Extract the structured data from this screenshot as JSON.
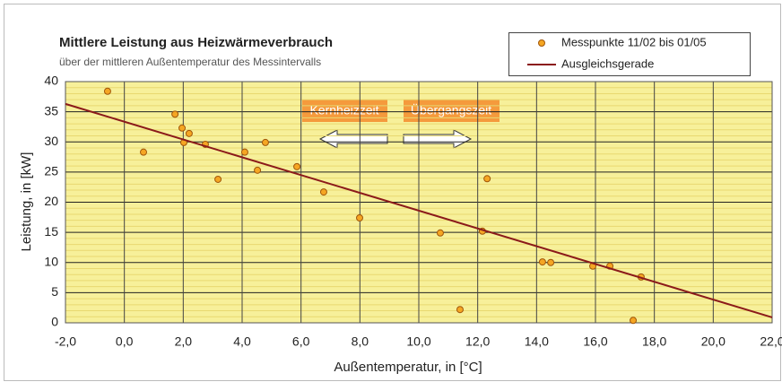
{
  "chart_data": {
    "type": "scatter",
    "title": "Mittlere Leistung aus Heizwärmeverbrauch",
    "subtitle": "über der mittleren Außentemperatur des Messintervalls",
    "x_label": "Außentemperatur, in [°C]",
    "y_label": "Leistung, in [kW]",
    "xlim": [
      -2,
      22
    ],
    "ylim": [
      0,
      40
    ],
    "xticks": [
      {
        "value": -2,
        "label": "-2,0"
      },
      {
        "value": 0,
        "label": "0,0"
      },
      {
        "value": 2,
        "label": "2,0"
      },
      {
        "value": 4,
        "label": "4,0"
      },
      {
        "value": 6,
        "label": "6,0"
      },
      {
        "value": 8,
        "label": "8,0"
      },
      {
        "value": 10,
        "label": "10,0"
      },
      {
        "value": 12,
        "label": "12,0"
      },
      {
        "value": 14,
        "label": "14,0"
      },
      {
        "value": 16,
        "label": "16,0"
      },
      {
        "value": 18,
        "label": "18,0"
      },
      {
        "value": 20,
        "label": "20,0"
      },
      {
        "value": 22,
        "label": "22,0"
      }
    ],
    "yticks": [
      0,
      5,
      10,
      15,
      20,
      25,
      30,
      35,
      40
    ],
    "minor_yticks": [
      1,
      2,
      3,
      4,
      6,
      7,
      8,
      9,
      11,
      12,
      13,
      14,
      16,
      17,
      18,
      19,
      21,
      22,
      23,
      24,
      26,
      27,
      28,
      29,
      31,
      32,
      33,
      34,
      36,
      37,
      38,
      39
    ],
    "grid": true,
    "legend": "top-right",
    "series": [
      {
        "name": "Messpunkte 11/02 bis 01/05",
        "type": "scatter",
        "color": "#f5a623",
        "x": [
          -0.57,
          0.65,
          1.72,
          1.96,
          2.2,
          2.02,
          2.75,
          3.18,
          4.09,
          4.52,
          4.79,
          5.86,
          6.77,
          7.99,
          10.73,
          11.4,
          12.16,
          12.32,
          14.2,
          14.48,
          15.91,
          16.49,
          17.28,
          17.55
        ],
        "values": [
          38.4,
          28.3,
          34.6,
          32.3,
          31.4,
          29.9,
          29.6,
          23.8,
          28.3,
          25.3,
          29.9,
          25.9,
          21.7,
          17.4,
          14.9,
          2.2,
          15.2,
          23.9,
          10.1,
          10.0,
          9.4,
          9.4,
          0.4,
          7.6
        ]
      },
      {
        "name": "Ausgleichsgerade",
        "type": "line",
        "color": "#8b1a1a",
        "x": [
          -2,
          22
        ],
        "values": [
          36.3,
          0.9
        ]
      }
    ],
    "annotations": [
      "Kernheizzeit",
      "Übergangszeit"
    ]
  }
}
